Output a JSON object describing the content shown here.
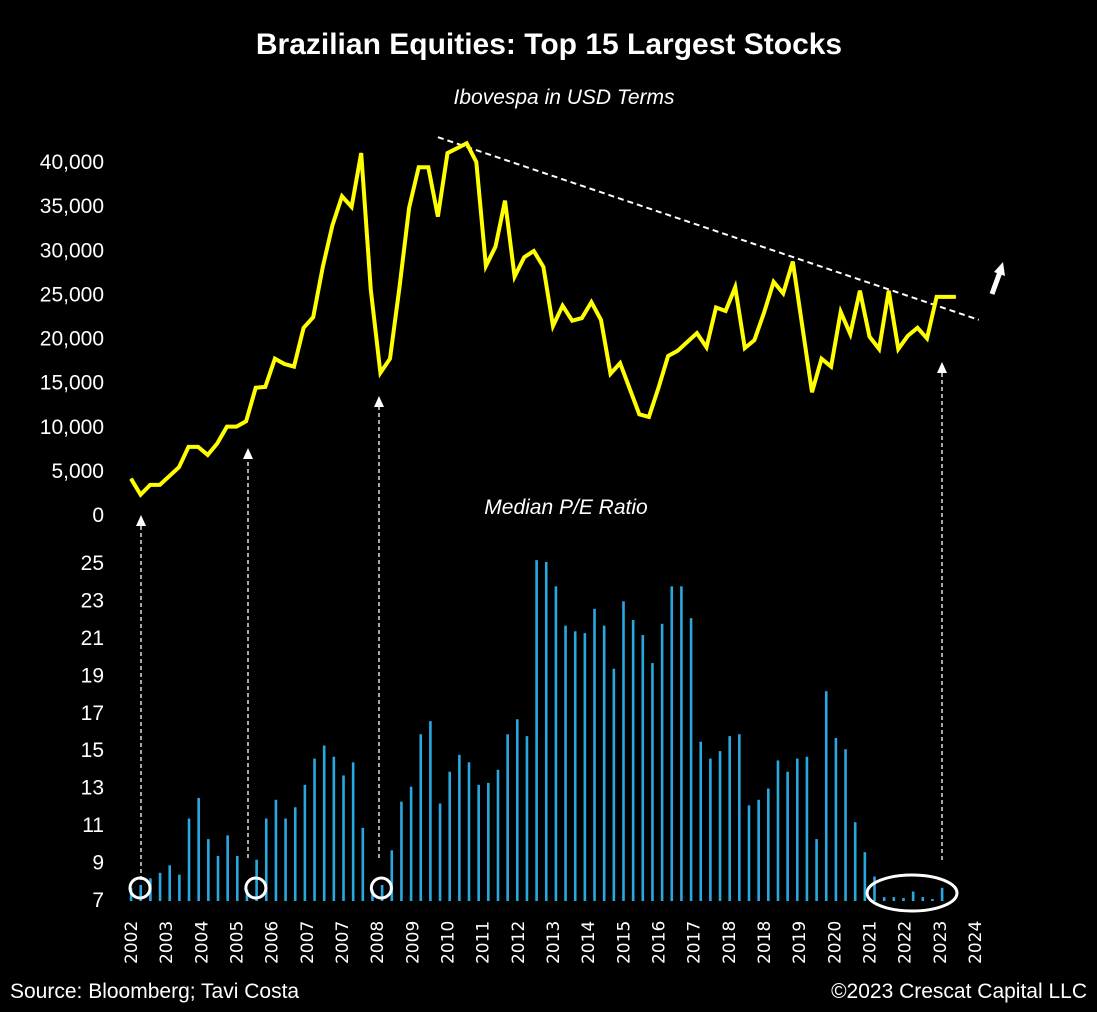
{
  "chart_data": [
    {
      "type": "line",
      "title": "Brazilian Equities: Top 15 Largest Stocks",
      "subtitle": "Ibovespa in USD Terms",
      "series_name": "Ibovespa in USD Terms",
      "color": "#ffff00",
      "ylim": [
        0,
        40000
      ],
      "yticks": [
        "0",
        "5,000",
        "10,000",
        "15,000",
        "20,000",
        "25,000",
        "30,000",
        "35,000",
        "40,000"
      ],
      "ytick_values": [
        0,
        5000,
        10000,
        15000,
        20000,
        25000,
        30000,
        35000,
        40000
      ],
      "x_range": [
        2002,
        2024
      ],
      "x": [
        2002.0,
        2002.25,
        2002.5,
        2002.75,
        2003.25,
        2003.5,
        2003.75,
        2004.0,
        2004.25,
        2004.5,
        2004.75,
        2005.0,
        2005.25,
        2005.5,
        2005.75,
        2006.0,
        2006.25,
        2006.5,
        2006.75,
        2007.0,
        2007.25,
        2007.5,
        2007.75,
        2008.0,
        2008.25,
        2008.5,
        2008.75,
        2009.0,
        2009.25,
        2009.5,
        2009.75,
        2010.0,
        2010.25,
        2010.75,
        2011.0,
        2011.25,
        2011.5,
        2011.75,
        2012.0,
        2012.25,
        2012.5,
        2012.75,
        2013.0,
        2013.25,
        2013.5,
        2013.75,
        2014.0,
        2014.25,
        2014.5,
        2014.75,
        2015.25,
        2015.5,
        2015.75,
        2016.0,
        2016.25,
        2016.75,
        2017.0,
        2017.25,
        2017.5,
        2017.75,
        2018.0,
        2018.25,
        2018.5,
        2018.75,
        2019.0,
        2019.25,
        2019.75,
        2020.0,
        2020.25,
        2020.5,
        2020.75,
        2021.0,
        2021.25,
        2021.5,
        2021.75,
        2022.0,
        2022.25,
        2022.5,
        2022.75,
        2023.0,
        2023.25,
        2023.5
      ],
      "values": [
        4000,
        2200,
        3300,
        3300,
        5300,
        7600,
        7600,
        6700,
        8000,
        9900,
        9900,
        10500,
        14300,
        14400,
        17600,
        17000,
        16700,
        21100,
        22300,
        28000,
        32700,
        36000,
        34800,
        40900,
        25400,
        16000,
        17600,
        25700,
        34700,
        39300,
        39300,
        33700,
        40900,
        42000,
        39900,
        28100,
        30300,
        35500,
        26900,
        29100,
        29800,
        28000,
        21300,
        23600,
        21900,
        22200,
        24000,
        22000,
        15900,
        17100,
        11300,
        11000,
        14300,
        17900,
        18500,
        20500,
        18900,
        23400,
        23000,
        25700,
        18800,
        19700,
        22800,
        26300,
        25000,
        28600,
        13800,
        17600,
        16700,
        22900,
        20400,
        25300,
        20100,
        18700,
        25300,
        18700,
        20200,
        21100,
        19900,
        24600,
        24600,
        24600
      ],
      "trendline": {
        "style": "dashed",
        "color": "#ffffff",
        "from": [
          2010.0,
          42700
        ],
        "to": [
          2024.1,
          22000
        ]
      },
      "annotations": [
        "up-arrow"
      ]
    },
    {
      "type": "bar",
      "title": "Median P/E Ratio",
      "color": "#29a8e0",
      "ylim": [
        7,
        25
      ],
      "yticks": [
        "7",
        "9",
        "11",
        "13",
        "15",
        "17",
        "19",
        "21",
        "23",
        "25"
      ],
      "ytick_values": [
        7,
        9,
        11,
        13,
        15,
        17,
        19,
        21,
        23,
        25
      ],
      "x_tick_labels": [
        "2002",
        "2003",
        "2004",
        "2005",
        "2006",
        "2007",
        "2007",
        "2008",
        "2009",
        "2010",
        "2011",
        "2012",
        "2013",
        "2014",
        "2015",
        "2016",
        "2017",
        "2018",
        "2018",
        "2019",
        "2020",
        "2021",
        "2022",
        "2023",
        "2024"
      ],
      "values": [
        7.6,
        7.75,
        8.1,
        8.4,
        8.8,
        8.3,
        11.3,
        12.4,
        10.2,
        9.3,
        10.4,
        9.3,
        7.5,
        9.1,
        11.3,
        12.3,
        11.3,
        11.9,
        13.1,
        14.5,
        15.2,
        14.6,
        13.6,
        14.3,
        10.8,
        7.5,
        7.75,
        9.6,
        12.2,
        13.0,
        15.8,
        16.5,
        12.1,
        13.8,
        14.7,
        14.3,
        13.1,
        13.2,
        13.9,
        15.8,
        16.6,
        15.7,
        25.1,
        25.0,
        23.7,
        21.6,
        21.3,
        21.2,
        22.5,
        21.6,
        19.3,
        22.9,
        21.9,
        21.1,
        19.6,
        21.7,
        23.7,
        23.7,
        22.0,
        15.4,
        14.5,
        14.9,
        15.7,
        15.8,
        12.0,
        12.3,
        12.9,
        14.4,
        13.8,
        14.5,
        14.6,
        10.2,
        18.1,
        15.6,
        15.0,
        11.1,
        9.5,
        8.2,
        7.1,
        7.1,
        7.05,
        7.4,
        7.1,
        7.0,
        7.6
      ],
      "highlighted_lows": [
        0,
        12,
        25
      ],
      "highlighted_range": [
        78,
        84
      ],
      "arrow_links": [
        0,
        12,
        25,
        84
      ]
    }
  ],
  "footer": {
    "source": "Source: Bloomberg; Tavi Costa",
    "copyright": "©2023 Crescat Capital LLC"
  }
}
